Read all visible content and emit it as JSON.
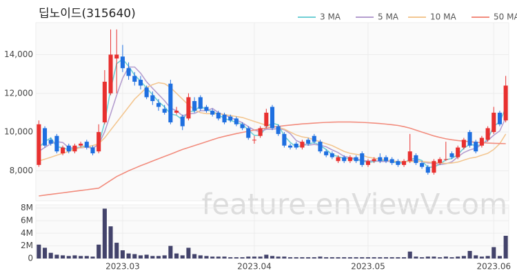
{
  "chart_data": {
    "type": "candlestick",
    "title": "딥노이드(315640)",
    "watermark": "feature.enViewV.com",
    "categories": [
      null,
      null,
      null,
      null,
      null,
      null,
      null,
      null,
      null,
      null,
      null,
      null,
      null,
      null,
      "2023.03",
      null,
      null,
      null,
      null,
      null,
      null,
      null,
      null,
      null,
      null,
      null,
      null,
      null,
      null,
      null,
      null,
      null,
      null,
      null,
      null,
      null,
      "2023.04",
      null,
      null,
      null,
      null,
      null,
      null,
      null,
      null,
      null,
      null,
      null,
      null,
      null,
      null,
      null,
      null,
      null,
      null,
      "2023.05",
      null,
      null,
      null,
      null,
      null,
      null,
      null,
      null,
      null,
      null,
      null,
      null,
      null,
      null,
      null,
      null,
      null,
      null,
      null,
      null,
      "2023.06",
      null,
      null
    ],
    "open": [
      8300,
      10200,
      9600,
      9800,
      8900,
      9300,
      9000,
      9300,
      9500,
      9200,
      9000,
      10500,
      12000,
      13800,
      13900,
      13300,
      12900,
      12700,
      12300,
      11900,
      11500,
      11200,
      12500,
      11000,
      10800,
      10700,
      11600,
      11800,
      11300,
      11100,
      11000,
      10900,
      10800,
      10700,
      10400,
      10200,
      9600,
      9800,
      10300,
      11300,
      10300,
      9900,
      9300,
      9400,
      9200,
      9600,
      9800,
      9500,
      9000,
      8900,
      8500,
      8700,
      8500,
      8700,
      8900,
      8300,
      8500,
      8700,
      8700,
      8600,
      8500,
      8300,
      8500,
      8800,
      8400,
      8200,
      7900,
      8400,
      8600,
      8900,
      8700,
      9200,
      10000,
      9500,
      9300,
      9600,
      10000,
      11000,
      10600
    ],
    "high": [
      10600,
      10300,
      9700,
      9900,
      9300,
      9400,
      9400,
      9500,
      9600,
      9300,
      10400,
      13200,
      15300,
      15300,
      14500,
      13600,
      13100,
      12900,
      12400,
      12100,
      11700,
      11400,
      12700,
      11300,
      10900,
      12000,
      11800,
      11900,
      11400,
      11200,
      11100,
      11000,
      10900,
      10800,
      10500,
      10300,
      9800,
      10300,
      11200,
      11400,
      10400,
      10000,
      9400,
      9500,
      9600,
      9700,
      9900,
      9600,
      9100,
      9000,
      8800,
      8800,
      8800,
      8800,
      9000,
      8600,
      8700,
      8900,
      8800,
      8700,
      8600,
      8600,
      9900,
      8900,
      8500,
      8300,
      8600,
      8700,
      9500,
      9000,
      9300,
      9700,
      10100,
      9600,
      9800,
      10300,
      11300,
      11100,
      12900
    ],
    "low": [
      8200,
      9200,
      9300,
      8900,
      8800,
      8900,
      8900,
      9200,
      9100,
      8800,
      8900,
      10400,
      11900,
      12000,
      13100,
      12700,
      12400,
      12200,
      11700,
      11400,
      11100,
      10900,
      10400,
      10900,
      10100,
      10600,
      11000,
      11100,
      11000,
      10800,
      10600,
      10400,
      10500,
      10300,
      10100,
      9600,
      9400,
      9700,
      10200,
      10100,
      9800,
      9200,
      9100,
      9100,
      9100,
      9300,
      9400,
      8900,
      8700,
      8600,
      8400,
      8400,
      8400,
      8400,
      8200,
      8200,
      8400,
      8400,
      8400,
      8300,
      8200,
      8200,
      8400,
      8300,
      8100,
      7800,
      7800,
      8300,
      8500,
      8600,
      8600,
      9100,
      9200,
      8900,
      9200,
      9500,
      9900,
      10300,
      10500
    ],
    "close": [
      10400,
      9300,
      9400,
      9000,
      9200,
      9000,
      9300,
      9400,
      9200,
      8900,
      10000,
      12600,
      14000,
      14000,
      13300,
      12900,
      12600,
      12400,
      11800,
      11600,
      11300,
      11000,
      10500,
      11100,
      10300,
      11800,
      11100,
      11200,
      11100,
      10900,
      10700,
      10500,
      10600,
      10400,
      10200,
      9700,
      9600,
      10200,
      11000,
      10200,
      9900,
      9300,
      9200,
      9200,
      9500,
      9400,
      9500,
      9000,
      8800,
      8700,
      8700,
      8500,
      8700,
      8500,
      8300,
      8500,
      8600,
      8500,
      8500,
      8400,
      8300,
      8500,
      9000,
      8400,
      8200,
      7900,
      8500,
      8600,
      8600,
      8700,
      9200,
      9600,
      9300,
      9000,
      9700,
      10200,
      11000,
      10400,
      12400
    ],
    "up_color": "#e8302f",
    "down_color": "#1e6fe0",
    "series": [
      {
        "name": "3 MA",
        "color": "#6fcfd4",
        "values": [
          9200,
          9500,
          9700,
          9233,
          9200,
          9067,
          9167,
          9233,
          9300,
          9167,
          9367,
          10500,
          12200,
          13533,
          13767,
          13400,
          12933,
          12633,
          12267,
          11933,
          11567,
          11300,
          10933,
          10867,
          10633,
          11067,
          11067,
          11367,
          11133,
          11067,
          10900,
          10700,
          10600,
          10500,
          10400,
          10100,
          9833,
          9833,
          10267,
          10467,
          10367,
          9800,
          9467,
          9233,
          9300,
          9367,
          9467,
          9300,
          9100,
          8833,
          8733,
          8633,
          8633,
          8567,
          8500,
          8433,
          8467,
          8533,
          8533,
          8467,
          8400,
          8400,
          8600,
          8633,
          8533,
          8167,
          8200,
          8333,
          8567,
          8633,
          8833,
          9167,
          9367,
          9300,
          9333,
          9633,
          10300,
          10533,
          11267
        ]
      },
      {
        "name": "5 MA",
        "color": "#b49dcf",
        "values": [
          9000,
          9200,
          9400,
          9500,
          9460,
          9180,
          9180,
          9180,
          9220,
          9160,
          9360,
          10020,
          10940,
          11900,
          12780,
          13360,
          13360,
          13040,
          12600,
          12260,
          11940,
          11620,
          11240,
          11100,
          10840,
          10940,
          10960,
          11100,
          11100,
          11220,
          11000,
          10880,
          10760,
          10620,
          10480,
          10280,
          10100,
          10020,
          10140,
          10140,
          10180,
          10120,
          9920,
          9560,
          9420,
          9320,
          9360,
          9320,
          9240,
          9080,
          8940,
          8740,
          8680,
          8620,
          8540,
          8500,
          8520,
          8480,
          8480,
          8500,
          8460,
          8440,
          8540,
          8520,
          8480,
          8400,
          8400,
          8320,
          8360,
          8460,
          8720,
          8940,
          9080,
          9160,
          9360,
          9560,
          9840,
          10060,
          10740
        ]
      },
      {
        "name": "10 MA",
        "color": "#f3c690",
        "values": [
          8500,
          8600,
          8700,
          8800,
          8900,
          9000,
          9100,
          9200,
          9250,
          9300,
          9400,
          9700,
          10100,
          10500,
          10900,
          11300,
          11700,
          12000,
          12300,
          12450,
          12550,
          12500,
          12300,
          12000,
          11700,
          11400,
          11150,
          11000,
          10950,
          10950,
          10950,
          10900,
          10850,
          10800,
          10750,
          10650,
          10550,
          10450,
          10350,
          10300,
          10250,
          10150,
          10000,
          9850,
          9750,
          9700,
          9600,
          9500,
          9400,
          9300,
          9150,
          9000,
          8900,
          8850,
          8800,
          8700,
          8650,
          8600,
          8550,
          8500,
          8480,
          8470,
          8480,
          8490,
          8480,
          8450,
          8420,
          8400,
          8380,
          8400,
          8450,
          8550,
          8650,
          8700,
          8800,
          8900,
          9100,
          9400,
          9900
        ]
      },
      {
        "name": "50 MA",
        "color": "#f28b7c",
        "values": [
          6700,
          6740,
          6780,
          6820,
          6860,
          6900,
          6940,
          6980,
          7020,
          7060,
          7100,
          7300,
          7500,
          7700,
          7850,
          8000,
          8130,
          8260,
          8380,
          8500,
          8620,
          8740,
          8860,
          8980,
          9100,
          9200,
          9300,
          9400,
          9500,
          9600,
          9700,
          9780,
          9850,
          9920,
          9980,
          10040,
          10100,
          10150,
          10200,
          10250,
          10290,
          10330,
          10360,
          10390,
          10420,
          10440,
          10460,
          10480,
          10500,
          10510,
          10520,
          10520,
          10520,
          10510,
          10500,
          10480,
          10460,
          10440,
          10410,
          10380,
          10340,
          10280,
          10200,
          10100,
          10000,
          9900,
          9800,
          9720,
          9650,
          9600,
          9560,
          9530,
          9500,
          9470,
          9450,
          9430,
          9420,
          9410,
          9400
        ]
      }
    ],
    "ylim": [
      6450,
      15650
    ],
    "yticks": [
      {
        "value": 8000,
        "label": "8,000"
      },
      {
        "value": 10000,
        "label": "10,000"
      },
      {
        "value": 12000,
        "label": "12,000"
      },
      {
        "value": 14000,
        "label": "14,000"
      }
    ],
    "grid": true,
    "legend": "top-right",
    "volume": {
      "color": "#43436b",
      "ylim": [
        0,
        8500000
      ],
      "yticks": [
        0,
        {
          "value": 2000000,
          "label": "2M"
        },
        {
          "value": 4000000,
          "label": "4M"
        },
        {
          "value": 6000000,
          "label": "6M"
        },
        {
          "value": 8000000,
          "label": "8M"
        }
      ],
      "values": [
        2200000,
        1700000,
        900000,
        600000,
        500000,
        400000,
        500000,
        400000,
        400000,
        300000,
        2200000,
        7900000,
        5100000,
        2500000,
        1300000,
        800000,
        700000,
        500000,
        600000,
        400000,
        400000,
        500000,
        2000000,
        800000,
        500000,
        1700000,
        700000,
        500000,
        400000,
        300000,
        300000,
        300000,
        200000,
        200000,
        200000,
        300000,
        300000,
        300000,
        600000,
        400000,
        300000,
        300000,
        200000,
        200000,
        200000,
        200000,
        200000,
        300000,
        200000,
        200000,
        200000,
        200000,
        200000,
        200000,
        200000,
        200000,
        200000,
        200000,
        200000,
        200000,
        200000,
        200000,
        1100000,
        300000,
        200000,
        300000,
        300000,
        200000,
        300000,
        200000,
        300000,
        400000,
        1200000,
        500000,
        300000,
        400000,
        1800000,
        400000,
        3600000
      ]
    }
  }
}
